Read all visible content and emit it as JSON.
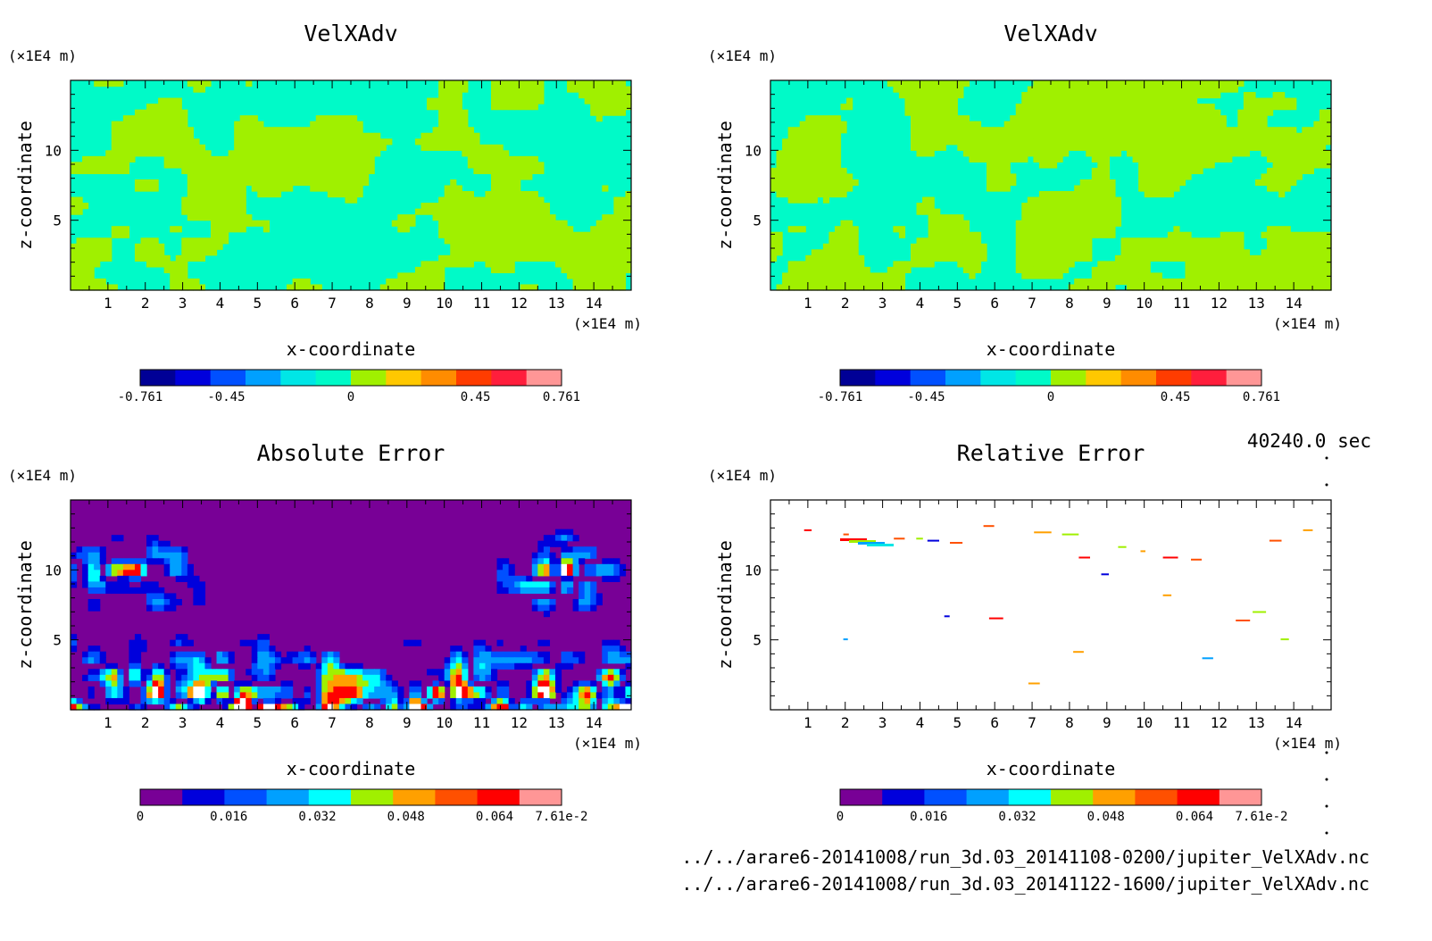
{
  "timestamp": "40240.0 sec",
  "files": [
    "../../arare6-20141008/run_3d.03_20141108-0200/jupiter_VelXAdv.nc",
    "../../arare6-20141008/run_3d.03_20141122-1600/jupiter_VelXAdv.nc"
  ],
  "chart_data": [
    {
      "type": "heatmap",
      "title": "VelXAdv",
      "xlabel": "x-coordinate",
      "ylabel": "z-coordinate",
      "x_unit": "(×1E4 m)",
      "z_unit": "(×1E4 m)",
      "xlim": [
        0,
        15
      ],
      "ylim": [
        0,
        15
      ],
      "x_ticks": [
        1,
        2,
        3,
        4,
        5,
        6,
        7,
        8,
        9,
        10,
        11,
        12,
        13,
        14
      ],
      "y_ticks": [
        5,
        10
      ],
      "colorbar": {
        "range": [
          -0.761,
          0.761
        ],
        "tick_labels": [
          "-0.761",
          "-0.45",
          "0",
          "0.45",
          "0.761"
        ],
        "tick_values": [
          -0.761,
          -0.45,
          0,
          0.45,
          0.761
        ],
        "colors": [
          "#000096",
          "#0000dc",
          "#0050ff",
          "#00a0ff",
          "#00e6e6",
          "#00fac8",
          "#a0f000",
          "#ffc800",
          "#ff8c00",
          "#ff3c00",
          "#ff1e3c",
          "#ff9696"
        ]
      },
      "field": "velocity"
    },
    {
      "type": "heatmap",
      "title": "VelXAdv",
      "xlabel": "x-coordinate",
      "ylabel": "z-coordinate",
      "x_unit": "(×1E4 m)",
      "z_unit": "(×1E4 m)",
      "xlim": [
        0,
        15
      ],
      "ylim": [
        0,
        15
      ],
      "x_ticks": [
        1,
        2,
        3,
        4,
        5,
        6,
        7,
        8,
        9,
        10,
        11,
        12,
        13,
        14
      ],
      "y_ticks": [
        5,
        10
      ],
      "colorbar": {
        "range": [
          -0.761,
          0.761
        ],
        "tick_labels": [
          "-0.761",
          "-0.45",
          "0",
          "0.45",
          "0.761"
        ],
        "tick_values": [
          -0.761,
          -0.45,
          0,
          0.45,
          0.761
        ],
        "colors": [
          "#000096",
          "#0000dc",
          "#0050ff",
          "#00a0ff",
          "#00e6e6",
          "#00fac8",
          "#a0f000",
          "#ffc800",
          "#ff8c00",
          "#ff3c00",
          "#ff1e3c",
          "#ff9696"
        ]
      },
      "field": "velocity"
    },
    {
      "type": "heatmap",
      "title": "Absolute Error",
      "xlabel": "x-coordinate",
      "ylabel": "z-coordinate",
      "x_unit": "(×1E4 m)",
      "z_unit": "(×1E4 m)",
      "xlim": [
        0,
        15
      ],
      "ylim": [
        0,
        15
      ],
      "x_ticks": [
        1,
        2,
        3,
        4,
        5,
        6,
        7,
        8,
        9,
        10,
        11,
        12,
        13,
        14
      ],
      "y_ticks": [
        5,
        10
      ],
      "colorbar": {
        "range": [
          0,
          0.0761
        ],
        "tick_labels": [
          "0",
          "0.016",
          "0.032",
          "0.048",
          "0.064",
          "7.61e-2"
        ],
        "tick_values": [
          0,
          0.016,
          0.032,
          0.048,
          0.064,
          0.0761
        ],
        "colors": [
          "#780096",
          "#0000dc",
          "#0050ff",
          "#00a0ff",
          "#00ffff",
          "#a0f000",
          "#ffa000",
          "#ff5000",
          "#ff0000",
          "#ff9696"
        ]
      },
      "field": "abs_error"
    },
    {
      "type": "heatmap",
      "title": "Relative Error",
      "xlabel": "x-coordinate",
      "ylabel": "z-coordinate",
      "x_unit": "(×1E4 m)",
      "z_unit": "(×1E4 m)",
      "xlim": [
        0,
        15
      ],
      "ylim": [
        0,
        15
      ],
      "x_ticks": [
        1,
        2,
        3,
        4,
        5,
        6,
        7,
        8,
        9,
        10,
        11,
        12,
        13,
        14
      ],
      "y_ticks": [
        5,
        10
      ],
      "colorbar": {
        "range": [
          0,
          0.0761
        ],
        "tick_labels": [
          "0",
          "0.016",
          "0.032",
          "0.048",
          "0.064",
          "7.61e-2"
        ],
        "tick_values": [
          0,
          0.016,
          0.032,
          0.048,
          0.064,
          0.0761
        ],
        "colors": [
          "#780096",
          "#0000dc",
          "#0050ff",
          "#00a0ff",
          "#00ffff",
          "#a0f000",
          "#ffa000",
          "#ff5000",
          "#ff0000",
          "#ff9696"
        ]
      },
      "field": "rel_error"
    }
  ]
}
